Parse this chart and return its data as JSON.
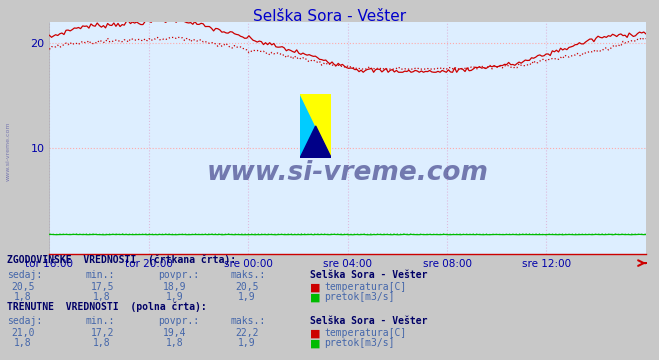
{
  "title": "Selška Sora - Vešter",
  "title_color": "#0000cc",
  "bg_color": "#c8c8c8",
  "plot_bg_color": "#ddeeff",
  "grid_color": "#ffcccc",
  "grid_color_v": "#ddaadd",
  "xlabel_color": "#0000aa",
  "ylabel_range": [
    0,
    22
  ],
  "yticks": [
    10,
    20
  ],
  "x_labels": [
    "tor 16:00",
    "tor 20:00",
    "sre 00:00",
    "sre 04:00",
    "sre 08:00",
    "sre 12:00"
  ],
  "n_points": 288,
  "temp_color": "#cc0000",
  "flow_color": "#00bb00",
  "watermark": "www.si-vreme.com",
  "watermark_color": "#1a1a6e",
  "table_header_color": "#000066",
  "table_value_color": "#4466aa",
  "hist_label": "ZGODOVINSKE  VREDNOSTI  (črtkana črta):",
  "curr_label": "TRENUTNE  VREDNOSTI  (polna črta):",
  "col_headers": [
    "sedaj:",
    "min.:",
    "povpr.:",
    "maks.:"
  ],
  "station_name": "Selška Sora - Vešter",
  "temp_label": "temperatura[C]",
  "flow_label": "pretok[m3/s]",
  "hist_temp_vals": [
    "20,5",
    "17,5",
    "18,9",
    "20,5"
  ],
  "hist_flow_vals": [
    "1,8",
    "1,8",
    "1,9",
    "1,9"
  ],
  "curr_temp_vals": [
    "21,0",
    "17,2",
    "19,4",
    "22,2"
  ],
  "curr_flow_vals": [
    "1,8",
    "1,8",
    "1,8",
    "1,9"
  ]
}
